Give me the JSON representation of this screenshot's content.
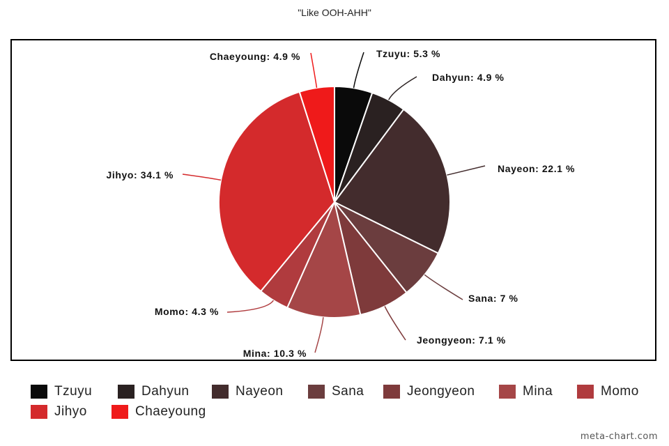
{
  "chart_data": {
    "type": "pie",
    "title": "\"Like OOH-AHH\"",
    "categories": [
      "Tzuyu",
      "Dahyun",
      "Nayeon",
      "Sana",
      "Jeongyeon",
      "Mina",
      "Momo",
      "Jihyo",
      "Chaeyoung"
    ],
    "values": [
      5.3,
      4.9,
      22.1,
      7,
      7.1,
      10.3,
      4.3,
      34.1,
      4.9
    ],
    "data_labels": [
      "Tzuyu: 5.3 %",
      "Dahyun: 4.9 %",
      "Nayeon: 22.1 %",
      "Sana: 7 %",
      "Jeongyeon: 7.1 %",
      "Mina: 10.3 %",
      "Momo: 4.3 %",
      "Jihyo: 34.1 %",
      "Chaeyoung: 4.9 %"
    ],
    "colors": [
      "#0a0a0a",
      "#2a2121",
      "#432c2d",
      "#6b3d3e",
      "#7e3a3b",
      "#a54647",
      "#b03b3e",
      "#d42a2c",
      "#ef1a1a"
    ],
    "legend_position": "bottom",
    "start_angle": "top-clockwise"
  },
  "watermark": "meta-chart.com"
}
